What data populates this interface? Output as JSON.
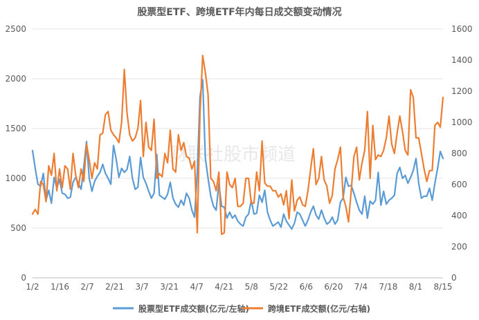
{
  "chart_data": {
    "type": "line",
    "title": "股票型ETF、跨境ETF年内每日成交额变动情况",
    "watermark": "财联社股市频道",
    "x_tick_labels": [
      "1/2",
      "1/16",
      "2/7",
      "2/21",
      "3/7",
      "3/21",
      "4/7",
      "4/21",
      "5/8",
      "5/22",
      "6/6",
      "6/20",
      "7/4",
      "7/18",
      "8/1",
      "8/15"
    ],
    "y_left": {
      "min": 0,
      "max": 2500,
      "ticks": [
        "0",
        "500",
        "1000",
        "1500",
        "2000",
        "2500"
      ]
    },
    "y_right": {
      "min": 0,
      "max": 1600,
      "ticks": [
        "0",
        "200",
        "400",
        "600",
        "800",
        "1000",
        "1200",
        "1400",
        "1600"
      ]
    },
    "grid": true,
    "legend_position": "bottom",
    "series": [
      {
        "name": "股票型ETF成交额(亿元/左轴)",
        "axis": "left",
        "color": "#5B9BD5",
        "values": [
          1280,
          1100,
          940,
          920,
          1050,
          780,
          880,
          750,
          1010,
          900,
          990,
          850,
          840,
          800,
          810,
          960,
          1010,
          950,
          890,
          1120,
          1370,
          1000,
          870,
          970,
          1020,
          1060,
          1140,
          1050,
          1000,
          940,
          1330,
          1190,
          1010,
          1100,
          1060,
          1090,
          1220,
          1000,
          890,
          910,
          1210,
          1010,
          950,
          870,
          800,
          850,
          1240,
          830,
          810,
          790,
          840,
          960,
          800,
          740,
          710,
          780,
          730,
          850,
          800,
          680,
          610,
          1060,
          1820,
          1990,
          1200,
          1000,
          820,
          720,
          680,
          950,
          720,
          710,
          600,
          660,
          600,
          630,
          570,
          540,
          520,
          610,
          640,
          780,
          640,
          650,
          830,
          760,
          880,
          660,
          580,
          520,
          540,
          560,
          510,
          640,
          570,
          530,
          490,
          550,
          660,
          640,
          580,
          520,
          580,
          660,
          720,
          630,
          590,
          680,
          600,
          540,
          560,
          610,
          540,
          580,
          760,
          800,
          1010,
          920,
          930,
          850,
          760,
          680,
          640,
          820,
          600,
          770,
          740,
          780,
          1060,
          730,
          870,
          740,
          780,
          800,
          830,
          1050,
          1110,
          1000,
          1030,
          950,
          1010,
          1080,
          1200,
          950,
          800,
          820,
          820,
          900,
          780,
          950,
          1100,
          1270,
          1200
        ]
      },
      {
        "name": "跨境ETF成交额(亿元/右轴)",
        "axis": "right",
        "color": "#ED7D31",
        "values": [
          410,
          440,
          410,
          620,
          600,
          490,
          720,
          660,
          800,
          560,
          700,
          580,
          720,
          700,
          570,
          800,
          660,
          580,
          700,
          620,
          860,
          760,
          640,
          740,
          700,
          920,
          930,
          1050,
          1070,
          950,
          920,
          900,
          870,
          1000,
          1340,
          1060,
          920,
          880,
          900,
          960,
          1140,
          780,
          1000,
          840,
          820,
          1020,
          640,
          670,
          650,
          800,
          740,
          950,
          700,
          680,
          920,
          820,
          870,
          780,
          770,
          700,
          750,
          290,
          1050,
          1430,
          1320,
          1180,
          640,
          620,
          560,
          680,
          280,
          290,
          680,
          600,
          580,
          640,
          460,
          460,
          480,
          640,
          640,
          480,
          480,
          680,
          560,
          880,
          610,
          590,
          590,
          560,
          560,
          520,
          540,
          470,
          560,
          380,
          630,
          430,
          500,
          520,
          470,
          460,
          560,
          700,
          830,
          600,
          640,
          780,
          630,
          590,
          480,
          530,
          700,
          760,
          840,
          520,
          460,
          360,
          560,
          780,
          840,
          630,
          740,
          820,
          1070,
          640,
          980,
          760,
          790,
          780,
          820,
          900,
          1040,
          860,
          800,
          930,
          1040,
          940,
          820,
          790,
          1210,
          1160,
          900,
          900,
          800,
          700,
          620,
          690,
          690,
          980,
          1000,
          970,
          1160
        ]
      }
    ]
  }
}
